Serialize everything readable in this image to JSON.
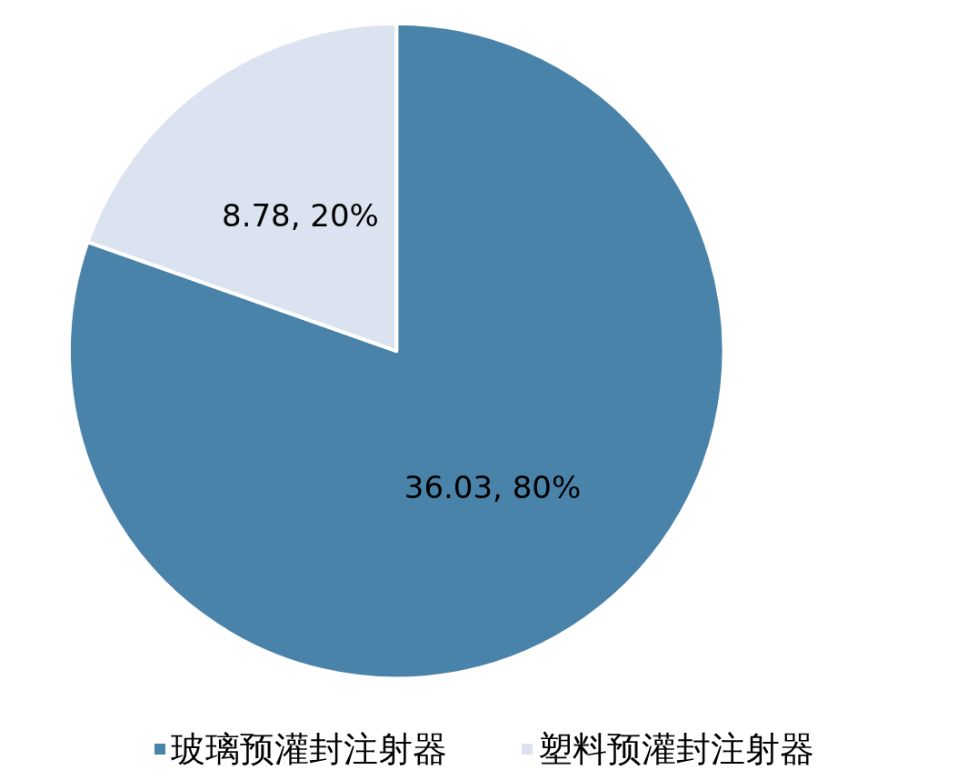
{
  "chart_data": {
    "type": "pie",
    "categories": [
      "玻璃预灌封注射器",
      "塑料预灌封注射器"
    ],
    "values": [
      36.03,
      8.78
    ],
    "colors": [
      "#4a83aa",
      "#dce3f0"
    ],
    "value_labels": [
      "36.03, 80%",
      "8.78, 20%"
    ],
    "legend": "bottom"
  }
}
